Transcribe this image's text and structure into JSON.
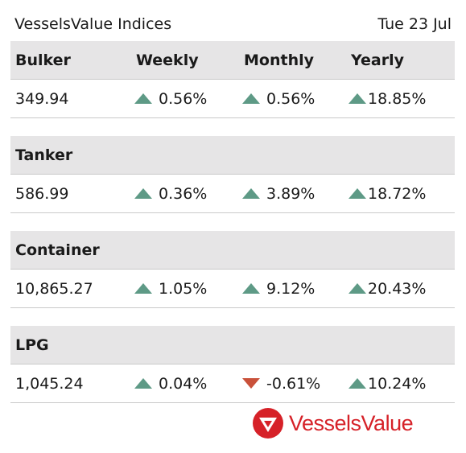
{
  "header": {
    "title": "VesselsValue Indices",
    "date": "Tue 23 Jul"
  },
  "columns": [
    "Weekly",
    "Monthly",
    "Yearly"
  ],
  "indices": [
    {
      "name": "Bulker",
      "value": "349.94",
      "weekly": {
        "text": "0.56%",
        "direction": "up"
      },
      "monthly": {
        "text": "0.56%",
        "direction": "up"
      },
      "yearly": {
        "text": "18.85%",
        "direction": "up"
      }
    },
    {
      "name": "Tanker",
      "value": "586.99",
      "weekly": {
        "text": "0.36%",
        "direction": "up"
      },
      "monthly": {
        "text": "3.89%",
        "direction": "up"
      },
      "yearly": {
        "text": "18.72%",
        "direction": "up"
      }
    },
    {
      "name": "Container",
      "value": "10,865.27",
      "weekly": {
        "text": "1.05%",
        "direction": "up"
      },
      "monthly": {
        "text": "9.12%",
        "direction": "up"
      },
      "yearly": {
        "text": "20.43%",
        "direction": "up"
      }
    },
    {
      "name": "LPG",
      "value": "1,045.24",
      "weekly": {
        "text": "0.04%",
        "direction": "up"
      },
      "monthly": {
        "text": "-0.61%",
        "direction": "down"
      },
      "yearly": {
        "text": "10.24%",
        "direction": "up"
      }
    }
  ],
  "colors": {
    "up": "#5e9a86",
    "down": "#c9513a",
    "brand": "#d62128",
    "header_bg": "#e6e5e6"
  },
  "logo": {
    "text": "VesselsValue",
    "icon": "vesselsvalue-logo-icon"
  }
}
